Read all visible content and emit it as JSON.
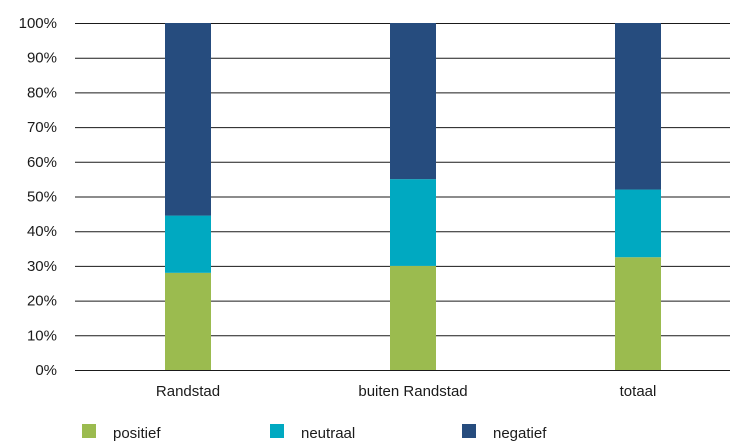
{
  "chart_data": {
    "type": "bar",
    "stacked": true,
    "categories": [
      "Randstad",
      "buiten Randstad",
      "totaal"
    ],
    "series": [
      {
        "name": "positief",
        "values": [
          28,
          30,
          32.5
        ],
        "color": "#9bbb4f"
      },
      {
        "name": "neutraal",
        "values": [
          16.5,
          25,
          19.5
        ],
        "color": "#00a9c1"
      },
      {
        "name": "negatief",
        "values": [
          55.5,
          45,
          48
        ],
        "color": "#264c7e"
      }
    ],
    "ylim": [
      0,
      100
    ],
    "yticks": [
      "0%",
      "10%",
      "20%",
      "30%",
      "40%",
      "50%",
      "60%",
      "70%",
      "80%",
      "90%",
      "100%"
    ],
    "grid": true,
    "legend_position": "bottom-left",
    "title": "",
    "xlabel": "",
    "ylabel": ""
  }
}
